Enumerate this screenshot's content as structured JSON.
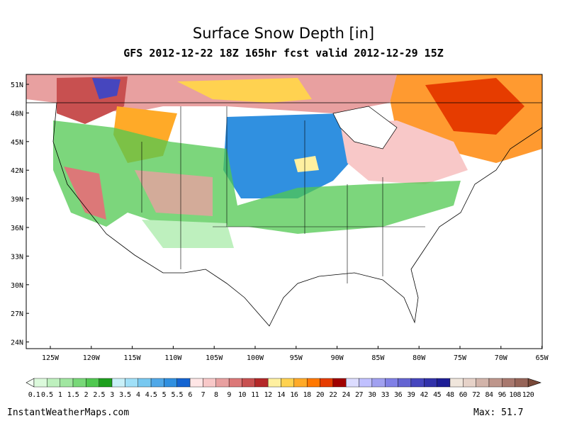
{
  "header": {
    "title": "Surface Snow Depth [in]",
    "subtitle": "GFS 2012-12-22 18Z 165hr fcst valid 2012-12-29 15Z"
  },
  "map": {
    "lat_labels": [
      "51N",
      "48N",
      "45N",
      "42N",
      "39N",
      "36N",
      "33N",
      "30N",
      "27N",
      "24N"
    ],
    "lon_labels": [
      "125W",
      "120W",
      "115W",
      "110W",
      "105W",
      "100W",
      "95W",
      "90W",
      "85W",
      "80W",
      "75W",
      "70W",
      "65W"
    ]
  },
  "colorbar": {
    "labels": [
      0.1,
      0.5,
      1,
      1.5,
      2,
      2.5,
      3,
      3.5,
      4,
      4.5,
      5,
      5.5,
      6,
      7,
      8,
      9,
      10,
      11,
      12,
      14,
      16,
      18,
      20,
      22,
      24,
      27,
      30,
      33,
      36,
      39,
      42,
      45,
      48,
      60,
      72,
      84,
      96,
      108,
      120
    ],
    "colors": [
      "#dcfadc",
      "#bef0be",
      "#a0e6a0",
      "#78d878",
      "#50c850",
      "#1ea01e",
      "#c8f0f8",
      "#a0e0f8",
      "#78c8f0",
      "#50a8e8",
      "#3090e0",
      "#1464d2",
      "#ffe6e6",
      "#f8c8c8",
      "#e8a0a0",
      "#dc7878",
      "#c85050",
      "#b42828",
      "#fff0a0",
      "#ffd250",
      "#ffaa28",
      "#ff7800",
      "#e63c00",
      "#a00000",
      "#dcdcff",
      "#c0c0ff",
      "#a0a0f0",
      "#8080e6",
      "#6464d2",
      "#4646be",
      "#3232aa",
      "#1e1e96",
      "#f0e6dc",
      "#e6d2c8",
      "#d2b4aa",
      "#be968c",
      "#a8786e",
      "#966458"
    ],
    "low_color": "#f4fff4",
    "high_color": "#784838"
  },
  "footer": {
    "credit": "InstantWeatherMaps.com",
    "max": "Max:  51.7"
  }
}
